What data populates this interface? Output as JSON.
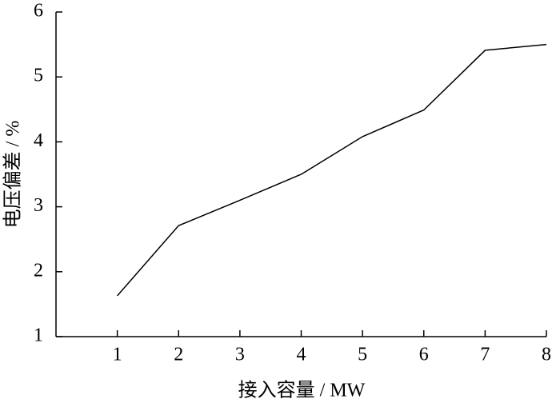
{
  "chart_data": {
    "type": "line",
    "x_label": "接入容量 / MW",
    "y_label": "电压偏差 / %",
    "x": [
      1,
      2,
      3,
      4,
      5,
      6,
      7,
      8
    ],
    "series": [
      {
        "color": "#000000",
        "values": [
          1.63,
          2.71,
          3.1,
          3.5,
          4.08,
          4.49,
          5.41,
          5.5
        ]
      }
    ],
    "xlim": [
      0,
      8
    ],
    "xticks": [
      1,
      2,
      3,
      4,
      5,
      6,
      7,
      8
    ],
    "ylim": [
      1,
      6
    ],
    "yticks": [
      1,
      2,
      3,
      4,
      5,
      6
    ]
  }
}
